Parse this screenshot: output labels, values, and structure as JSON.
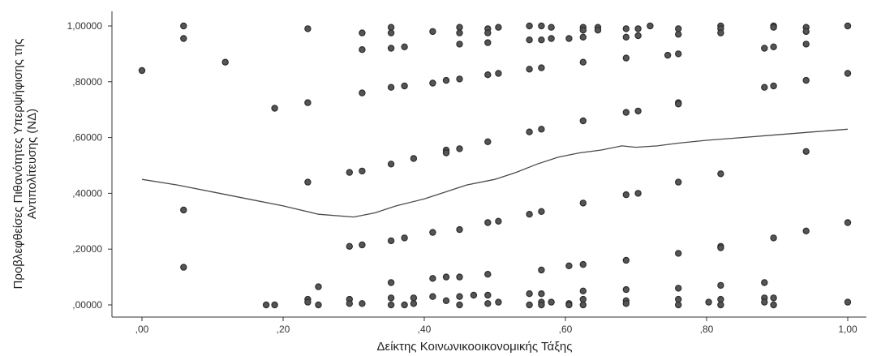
{
  "chart_data": {
    "type": "scatter",
    "xlabel": "Δείκτης Κοινωνικοοικονομικής Τάξης",
    "ylabel_lines": [
      "Προβλεφθείσες Πιθανότητες Υπερψήφισης της",
      "Αντιπολίτευσης (ΝΔ)"
    ],
    "xlim": [
      0,
      1
    ],
    "ylim": [
      0,
      1
    ],
    "x_ticks": [
      {
        "value": 0.0,
        "label": ",00"
      },
      {
        "value": 0.2,
        "label": ",20"
      },
      {
        "value": 0.4,
        "label": ",40"
      },
      {
        "value": 0.6,
        "label": ",60"
      },
      {
        "value": 0.8,
        "label": ",80"
      },
      {
        "value": 1.0,
        "label": "1,00"
      }
    ],
    "y_ticks": [
      {
        "value": 0.0,
        "label": ",00000"
      },
      {
        "value": 0.2,
        "label": ",20000"
      },
      {
        "value": 0.4,
        "label": ",40000"
      },
      {
        "value": 0.6,
        "label": ",60000"
      },
      {
        "value": 0.8,
        "label": ",80000"
      },
      {
        "value": 1.0,
        "label": "1,00000"
      }
    ],
    "grid": false,
    "points": [
      [
        0.0,
        0.84
      ],
      [
        0.059,
        1.0
      ],
      [
        0.059,
        0.955
      ],
      [
        0.059,
        0.34
      ],
      [
        0.059,
        0.135
      ],
      [
        0.118,
        0.87
      ],
      [
        0.176,
        0.0
      ],
      [
        0.188,
        0.0
      ],
      [
        0.188,
        0.705
      ],
      [
        0.235,
        0.99
      ],
      [
        0.235,
        0.725
      ],
      [
        0.235,
        0.44
      ],
      [
        0.235,
        0.02
      ],
      [
        0.235,
        0.01
      ],
      [
        0.25,
        0.065
      ],
      [
        0.25,
        0.0
      ],
      [
        0.294,
        0.475
      ],
      [
        0.294,
        0.21
      ],
      [
        0.294,
        0.02
      ],
      [
        0.294,
        0.005
      ],
      [
        0.312,
        0.975
      ],
      [
        0.312,
        0.915
      ],
      [
        0.312,
        0.76
      ],
      [
        0.312,
        0.48
      ],
      [
        0.312,
        0.215
      ],
      [
        0.312,
        0.005
      ],
      [
        0.353,
        0.995
      ],
      [
        0.353,
        0.975
      ],
      [
        0.353,
        0.92
      ],
      [
        0.353,
        0.78
      ],
      [
        0.353,
        0.505
      ],
      [
        0.353,
        0.23
      ],
      [
        0.353,
        0.08
      ],
      [
        0.353,
        0.025
      ],
      [
        0.353,
        0.0
      ],
      [
        0.372,
        0.925
      ],
      [
        0.372,
        0.785
      ],
      [
        0.372,
        0.24
      ],
      [
        0.372,
        0.0
      ],
      [
        0.385,
        0.525
      ],
      [
        0.385,
        0.025
      ],
      [
        0.385,
        0.005
      ],
      [
        0.412,
        0.98
      ],
      [
        0.412,
        0.795
      ],
      [
        0.412,
        0.26
      ],
      [
        0.412,
        0.095
      ],
      [
        0.412,
        0.03
      ],
      [
        0.431,
        0.805
      ],
      [
        0.431,
        0.555
      ],
      [
        0.431,
        0.545
      ],
      [
        0.431,
        0.1
      ],
      [
        0.431,
        0.015
      ],
      [
        0.45,
        0.995
      ],
      [
        0.45,
        0.975
      ],
      [
        0.45,
        0.935
      ],
      [
        0.45,
        0.81
      ],
      [
        0.45,
        0.56
      ],
      [
        0.45,
        0.27
      ],
      [
        0.45,
        0.1
      ],
      [
        0.45,
        0.03
      ],
      [
        0.45,
        0.0
      ],
      [
        0.47,
        0.035
      ],
      [
        0.49,
        0.99
      ],
      [
        0.49,
        0.975
      ],
      [
        0.49,
        0.94
      ],
      [
        0.49,
        0.825
      ],
      [
        0.49,
        0.585
      ],
      [
        0.49,
        0.295
      ],
      [
        0.49,
        0.11
      ],
      [
        0.49,
        0.035
      ],
      [
        0.49,
        0.005
      ],
      [
        0.505,
        0.995
      ],
      [
        0.505,
        0.83
      ],
      [
        0.505,
        0.3
      ],
      [
        0.505,
        0.01
      ],
      [
        0.549,
        1.0
      ],
      [
        0.549,
        0.95
      ],
      [
        0.549,
        0.845
      ],
      [
        0.549,
        0.62
      ],
      [
        0.549,
        0.325
      ],
      [
        0.549,
        0.04
      ],
      [
        0.549,
        0.0
      ],
      [
        0.566,
        1.0
      ],
      [
        0.566,
        0.95
      ],
      [
        0.566,
        0.85
      ],
      [
        0.566,
        0.63
      ],
      [
        0.566,
        0.335
      ],
      [
        0.566,
        0.125
      ],
      [
        0.566,
        0.04
      ],
      [
        0.566,
        0.01
      ],
      [
        0.566,
        0.0
      ],
      [
        0.58,
        0.995
      ],
      [
        0.58,
        0.955
      ],
      [
        0.58,
        0.01
      ],
      [
        0.605,
        0.955
      ],
      [
        0.605,
        0.14
      ],
      [
        0.605,
        0.005
      ],
      [
        0.605,
        0.0
      ],
      [
        0.625,
        0.995
      ],
      [
        0.625,
        0.985
      ],
      [
        0.625,
        0.96
      ],
      [
        0.625,
        0.87
      ],
      [
        0.625,
        0.66
      ],
      [
        0.625,
        0.365
      ],
      [
        0.625,
        0.145
      ],
      [
        0.625,
        0.05
      ],
      [
        0.625,
        0.02
      ],
      [
        0.625,
        0.0
      ],
      [
        0.646,
        0.995
      ],
      [
        0.646,
        0.985
      ],
      [
        0.686,
        0.99
      ],
      [
        0.686,
        0.96
      ],
      [
        0.686,
        0.885
      ],
      [
        0.686,
        0.69
      ],
      [
        0.686,
        0.395
      ],
      [
        0.686,
        0.16
      ],
      [
        0.686,
        0.055
      ],
      [
        0.686,
        0.015
      ],
      [
        0.686,
        0.005
      ],
      [
        0.703,
        0.99
      ],
      [
        0.703,
        0.965
      ],
      [
        0.703,
        0.695
      ],
      [
        0.703,
        0.4
      ],
      [
        0.72,
        1.0
      ],
      [
        0.745,
        0.895
      ],
      [
        0.76,
        0.99
      ],
      [
        0.76,
        0.97
      ],
      [
        0.76,
        0.9
      ],
      [
        0.76,
        0.725
      ],
      [
        0.76,
        0.72
      ],
      [
        0.76,
        0.44
      ],
      [
        0.76,
        0.185
      ],
      [
        0.76,
        0.06
      ],
      [
        0.76,
        0.02
      ],
      [
        0.76,
        0.0
      ],
      [
        0.803,
        0.01
      ],
      [
        0.82,
        1.0
      ],
      [
        0.82,
        0.99
      ],
      [
        0.82,
        0.975
      ],
      [
        0.82,
        0.47
      ],
      [
        0.82,
        0.21
      ],
      [
        0.82,
        0.205
      ],
      [
        0.82,
        0.07
      ],
      [
        0.82,
        0.02
      ],
      [
        0.82,
        0.0
      ],
      [
        0.882,
        0.92
      ],
      [
        0.882,
        0.78
      ],
      [
        0.882,
        0.08
      ],
      [
        0.882,
        0.025
      ],
      [
        0.882,
        0.01
      ],
      [
        0.895,
        1.0
      ],
      [
        0.895,
        0.995
      ],
      [
        0.895,
        0.925
      ],
      [
        0.895,
        0.785
      ],
      [
        0.895,
        0.24
      ],
      [
        0.895,
        0.025
      ],
      [
        0.895,
        0.0
      ],
      [
        0.941,
        0.995
      ],
      [
        0.941,
        0.98
      ],
      [
        0.941,
        0.935
      ],
      [
        0.941,
        0.805
      ],
      [
        0.941,
        0.55
      ],
      [
        0.941,
        0.265
      ],
      [
        1.0,
        1.0
      ],
      [
        1.0,
        0.83
      ],
      [
        1.0,
        0.295
      ],
      [
        1.0,
        0.01
      ]
    ],
    "fit_line": [
      [
        0.0,
        0.45
      ],
      [
        0.05,
        0.43
      ],
      [
        0.1,
        0.405
      ],
      [
        0.15,
        0.38
      ],
      [
        0.2,
        0.355
      ],
      [
        0.25,
        0.325
      ],
      [
        0.3,
        0.315
      ],
      [
        0.33,
        0.33
      ],
      [
        0.36,
        0.355
      ],
      [
        0.4,
        0.38
      ],
      [
        0.43,
        0.405
      ],
      [
        0.46,
        0.43
      ],
      [
        0.5,
        0.45
      ],
      [
        0.53,
        0.475
      ],
      [
        0.56,
        0.505
      ],
      [
        0.59,
        0.53
      ],
      [
        0.62,
        0.545
      ],
      [
        0.65,
        0.555
      ],
      [
        0.68,
        0.57
      ],
      [
        0.7,
        0.565
      ],
      [
        0.73,
        0.57
      ],
      [
        0.76,
        0.58
      ],
      [
        0.8,
        0.59
      ],
      [
        0.85,
        0.6
      ],
      [
        0.9,
        0.61
      ],
      [
        0.95,
        0.62
      ],
      [
        1.0,
        0.63
      ]
    ]
  }
}
